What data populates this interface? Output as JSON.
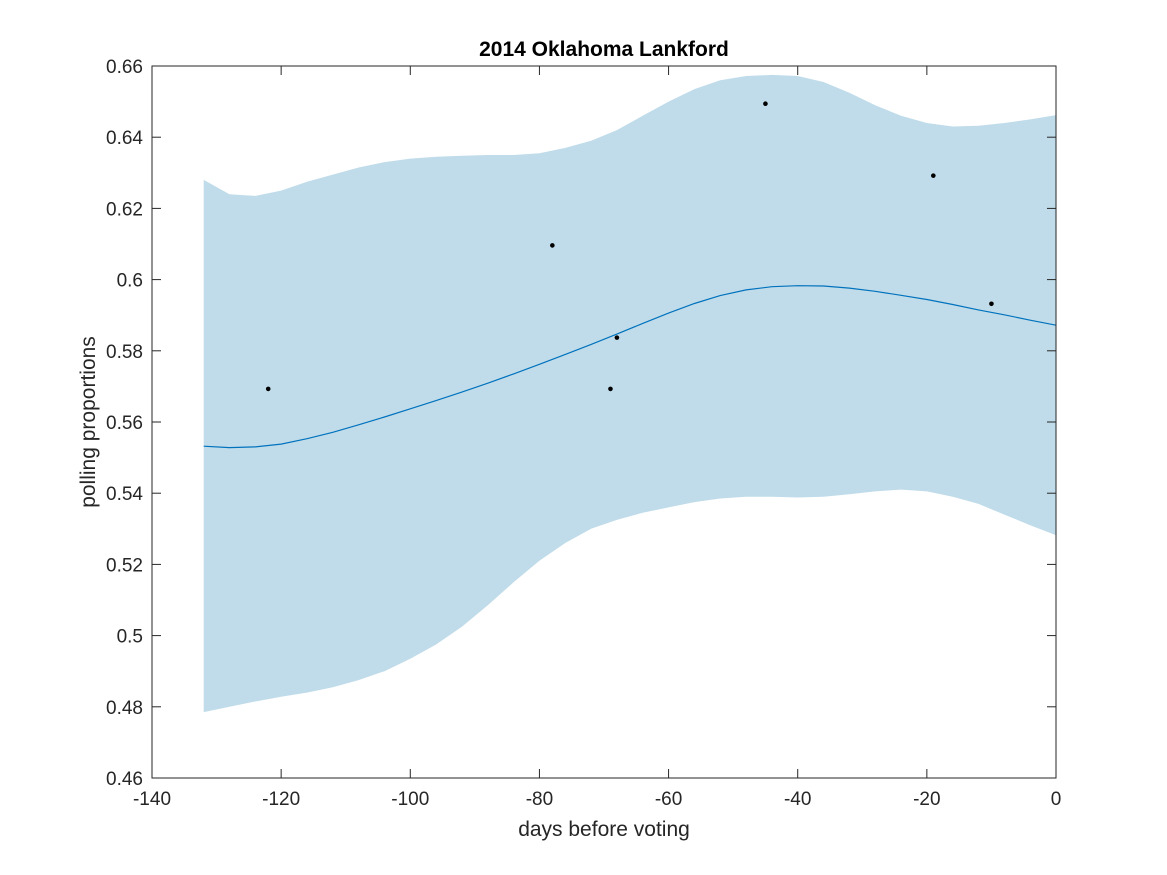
{
  "chart_data": {
    "type": "line",
    "title": "2014 Oklahoma Lankford",
    "xlabel": "days before voting",
    "ylabel": "polling proportions",
    "xlim": [
      -140,
      0
    ],
    "ylim": [
      0.46,
      0.66
    ],
    "xticks": [
      "-140",
      "-120",
      "-100",
      "-80",
      "-60",
      "-40",
      "-20",
      "0"
    ],
    "yticks": [
      "0.46",
      "0.48",
      "0.5",
      "0.52",
      "0.54",
      "0.56",
      "0.58",
      "0.6",
      "0.62",
      "0.64",
      "0.66"
    ],
    "grid": false,
    "colors": {
      "band": "#c0dcea",
      "line": "#0072bd",
      "points": "#000000",
      "axes": "#262626"
    },
    "fit": {
      "x": [
        -132,
        -128,
        -124,
        -120,
        -116,
        -112,
        -108,
        -104,
        -100,
        -96,
        -92,
        -88,
        -84,
        -80,
        -76,
        -72,
        -68,
        -64,
        -60,
        -56,
        -52,
        -48,
        -44,
        -40,
        -36,
        -32,
        -28,
        -24,
        -20,
        -16,
        -12,
        -8,
        -4,
        0
      ],
      "y": [
        0.5532,
        0.5528,
        0.553,
        0.5538,
        0.5553,
        0.5571,
        0.5592,
        0.5614,
        0.5637,
        0.566,
        0.5684,
        0.5709,
        0.5735,
        0.5762,
        0.579,
        0.5818,
        0.5847,
        0.5877,
        0.5906,
        0.5933,
        0.5955,
        0.5971,
        0.598,
        0.5983,
        0.5982,
        0.5976,
        0.5967,
        0.5956,
        0.5944,
        0.593,
        0.5915,
        0.5901,
        0.5886,
        0.5872
      ],
      "upper": [
        0.628,
        0.624,
        0.6235,
        0.625,
        0.6275,
        0.6295,
        0.6315,
        0.633,
        0.634,
        0.6345,
        0.6348,
        0.635,
        0.635,
        0.6355,
        0.637,
        0.639,
        0.642,
        0.646,
        0.65,
        0.6535,
        0.656,
        0.6572,
        0.6575,
        0.6572,
        0.6555,
        0.6525,
        0.649,
        0.646,
        0.644,
        0.643,
        0.6432,
        0.644,
        0.645,
        0.6462
      ],
      "lower": [
        0.4785,
        0.48,
        0.4815,
        0.4828,
        0.484,
        0.4855,
        0.4875,
        0.49,
        0.4935,
        0.4975,
        0.5025,
        0.5085,
        0.515,
        0.521,
        0.526,
        0.53,
        0.5325,
        0.5345,
        0.536,
        0.5375,
        0.5385,
        0.539,
        0.539,
        0.5388,
        0.539,
        0.5397,
        0.5405,
        0.541,
        0.5405,
        0.539,
        0.537,
        0.534,
        0.531,
        0.5282
      ]
    },
    "points": {
      "x": [
        -122,
        -78,
        -69,
        -68,
        -45,
        -19,
        -10
      ],
      "y": [
        0.5693,
        0.6096,
        0.5693,
        0.5837,
        0.6494,
        0.6292,
        0.5932
      ]
    }
  }
}
